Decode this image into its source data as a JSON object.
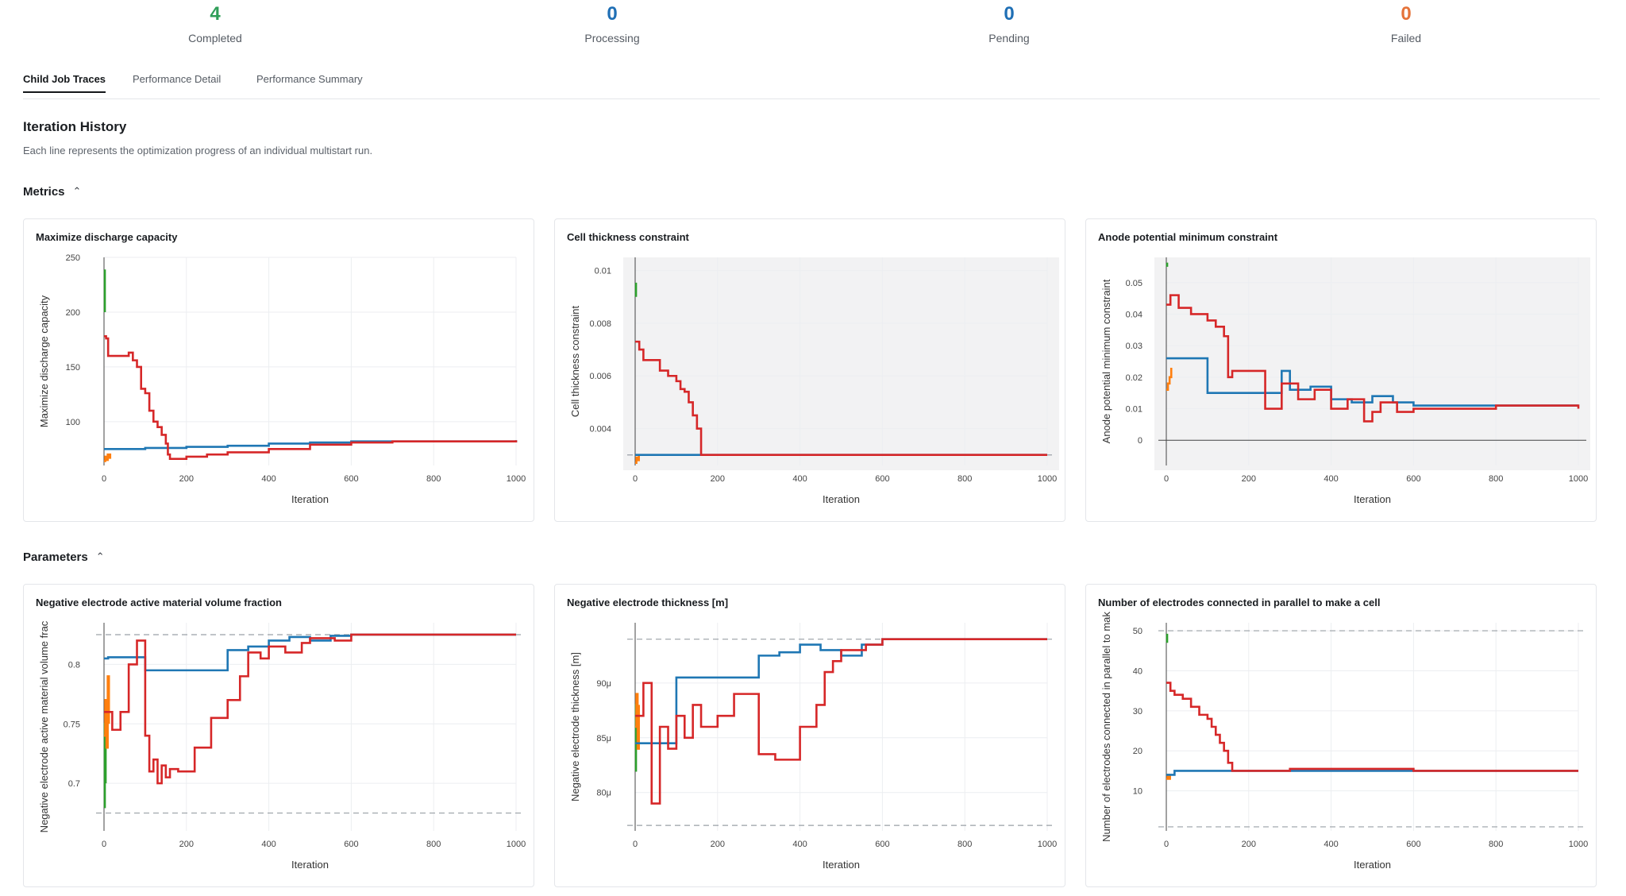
{
  "stats": [
    {
      "value": "4",
      "label": "Completed",
      "color": "#2f9e58"
    },
    {
      "value": "0",
      "label": "Processing",
      "color": "#1f6fb5"
    },
    {
      "value": "0",
      "label": "Pending",
      "color": "#1f6fb5"
    },
    {
      "value": "0",
      "label": "Failed",
      "color": "#e5733a"
    }
  ],
  "tabs": [
    "Child Job Traces",
    "Performance Detail",
    "Performance Summary"
  ],
  "active_tab": "Child Job Traces",
  "page": {
    "title": "Iteration History",
    "subtitle": "Each line represents the optimization progress of an individual multistart run."
  },
  "sections": {
    "metrics": "Metrics",
    "parameters": "Parameters",
    "chevron": "^"
  },
  "series_colors": {
    "red": "#d62728",
    "blue": "#1f77b4",
    "green": "#2ca02c",
    "orange": "#ff7f0e"
  },
  "chart_data": [
    {
      "type": "line",
      "title": "Maximize discharge capacity",
      "xlabel": "Iteration",
      "ylabel": "Maximize discharge capacity",
      "xlim": [
        0,
        1000
      ],
      "ylim": [
        60,
        250
      ],
      "xticks": [
        {
          "v": 0,
          "l": "0"
        },
        {
          "v": 200,
          "l": "200"
        },
        {
          "v": 400,
          "l": "400"
        },
        {
          "v": 600,
          "l": "600"
        },
        {
          "v": 800,
          "l": "800"
        },
        {
          "v": 1000,
          "l": "1000"
        }
      ],
      "yticks": [
        {
          "v": 100,
          "l": "100"
        },
        {
          "v": 150,
          "l": "150"
        },
        {
          "v": 200,
          "l": "200"
        },
        {
          "v": 250,
          "l": "250"
        }
      ],
      "shaded": false,
      "hlines": [],
      "zeroline": null,
      "series": [
        {
          "color": "#2ca02c",
          "x": [
            0,
            2
          ],
          "y": [
            238,
            200
          ]
        },
        {
          "color": "#ff7f0e",
          "x": [
            0,
            3,
            6,
            9,
            12,
            15
          ],
          "y": [
            64,
            68,
            65,
            70,
            67,
            71
          ]
        },
        {
          "color": "#1f77b4",
          "x": [
            0,
            100,
            200,
            300,
            400,
            500,
            600,
            700,
            800,
            1000
          ],
          "y": [
            75,
            76,
            77,
            78,
            80,
            81,
            82,
            82,
            82,
            83
          ]
        },
        {
          "color": "#d62728",
          "x": [
            0,
            5,
            10,
            20,
            40,
            60,
            70,
            80,
            90,
            100,
            110,
            120,
            130,
            140,
            150,
            155,
            160,
            200,
            250,
            300,
            400,
            500,
            600,
            700,
            800,
            1000
          ],
          "y": [
            178,
            176,
            160,
            160,
            160,
            163,
            156,
            150,
            130,
            126,
            110,
            100,
            95,
            88,
            80,
            70,
            66,
            68,
            70,
            72,
            75,
            79,
            81,
            82,
            82,
            83
          ]
        }
      ]
    },
    {
      "type": "line",
      "title": "Cell thickness constraint",
      "xlabel": "Iteration",
      "ylabel": "Cell thickness constraint",
      "xlim": [
        0,
        1000
      ],
      "ylim": [
        0.0026,
        0.0105
      ],
      "xticks": [
        {
          "v": 0,
          "l": "0"
        },
        {
          "v": 200,
          "l": "200"
        },
        {
          "v": 400,
          "l": "400"
        },
        {
          "v": 600,
          "l": "600"
        },
        {
          "v": 800,
          "l": "800"
        },
        {
          "v": 1000,
          "l": "1000"
        }
      ],
      "yticks": [
        {
          "v": 0.004,
          "l": "0.004"
        },
        {
          "v": 0.006,
          "l": "0.006"
        },
        {
          "v": 0.008,
          "l": "0.008"
        },
        {
          "v": 0.01,
          "l": "0.01"
        }
      ],
      "shaded": true,
      "shade_from": 0.003,
      "hlines": [
        0.003
      ],
      "zeroline": null,
      "series": [
        {
          "color": "#2ca02c",
          "x": [
            0,
            2
          ],
          "y": [
            0.0095,
            0.009
          ]
        },
        {
          "color": "#ff7f0e",
          "x": [
            0,
            3,
            6,
            9
          ],
          "y": [
            0.0027,
            0.0029,
            0.0028,
            0.003
          ]
        },
        {
          "color": "#1f77b4",
          "x": [
            0,
            200,
            400,
            600,
            800,
            1000
          ],
          "y": [
            0.003,
            0.003,
            0.003,
            0.003,
            0.003,
            0.003
          ]
        },
        {
          "color": "#d62728",
          "x": [
            0,
            10,
            20,
            40,
            60,
            80,
            100,
            110,
            120,
            130,
            140,
            150,
            160,
            200,
            400,
            600,
            800,
            1000
          ],
          "y": [
            0.0073,
            0.007,
            0.0066,
            0.0066,
            0.0062,
            0.006,
            0.0058,
            0.0055,
            0.0054,
            0.005,
            0.0045,
            0.004,
            0.003,
            0.003,
            0.003,
            0.003,
            0.003,
            0.003
          ]
        }
      ]
    },
    {
      "type": "line",
      "title": "Anode potential minimum constraint",
      "xlabel": "Iteration",
      "ylabel": "Anode potential minimum constraint",
      "xlim": [
        0,
        1000
      ],
      "ylim": [
        -0.008,
        0.058
      ],
      "xticks": [
        {
          "v": 0,
          "l": "0"
        },
        {
          "v": 200,
          "l": "200"
        },
        {
          "v": 400,
          "l": "400"
        },
        {
          "v": 600,
          "l": "600"
        },
        {
          "v": 800,
          "l": "800"
        },
        {
          "v": 1000,
          "l": "1000"
        }
      ],
      "yticks": [
        {
          "v": 0,
          "l": "0"
        },
        {
          "v": 0.01,
          "l": "0.01"
        },
        {
          "v": 0.02,
          "l": "0.02"
        },
        {
          "v": 0.03,
          "l": "0.03"
        },
        {
          "v": 0.04,
          "l": "0.04"
        },
        {
          "v": 0.05,
          "l": "0.05"
        }
      ],
      "shaded": true,
      "shade_from": 0,
      "hlines": [],
      "zeroline": 0,
      "series": [
        {
          "color": "#2ca02c",
          "x": [
            0,
            2
          ],
          "y": [
            0.056,
            0.055
          ]
        },
        {
          "color": "#ff7f0e",
          "x": [
            0,
            4,
            8,
            12
          ],
          "y": [
            0.016,
            0.018,
            0.02,
            0.023
          ]
        },
        {
          "color": "#1f77b4",
          "x": [
            0,
            10,
            100,
            220,
            280,
            300,
            350,
            400,
            450,
            500,
            550,
            600,
            800,
            1000
          ],
          "y": [
            0.026,
            0.026,
            0.015,
            0.015,
            0.022,
            0.016,
            0.017,
            0.013,
            0.012,
            0.014,
            0.012,
            0.011,
            0.011,
            0.011
          ]
        },
        {
          "color": "#d62728",
          "x": [
            0,
            10,
            30,
            60,
            100,
            120,
            140,
            150,
            160,
            200,
            240,
            280,
            320,
            360,
            400,
            440,
            480,
            500,
            520,
            560,
            600,
            800,
            1000
          ],
          "y": [
            0.043,
            0.046,
            0.042,
            0.04,
            0.038,
            0.036,
            0.033,
            0.02,
            0.022,
            0.022,
            0.01,
            0.018,
            0.013,
            0.016,
            0.01,
            0.013,
            0.006,
            0.009,
            0.012,
            0.009,
            0.01,
            0.011,
            0.01
          ]
        }
      ]
    },
    {
      "type": "line",
      "title": "Negative electrode active material volume fraction",
      "xlabel": "Iteration",
      "ylabel": "Negative electrode active material volume frac",
      "xlim": [
        0,
        1000
      ],
      "ylim": [
        0.66,
        0.835
      ],
      "xticks": [
        {
          "v": 0,
          "l": "0"
        },
        {
          "v": 200,
          "l": "200"
        },
        {
          "v": 400,
          "l": "400"
        },
        {
          "v": 600,
          "l": "600"
        },
        {
          "v": 800,
          "l": "800"
        },
        {
          "v": 1000,
          "l": "1000"
        }
      ],
      "yticks": [
        {
          "v": 0.7,
          "l": "0.7"
        },
        {
          "v": 0.75,
          "l": "0.75"
        },
        {
          "v": 0.8,
          "l": "0.8"
        }
      ],
      "shaded": false,
      "hlines": [
        0.675,
        0.825
      ],
      "zeroline": null,
      "series": [
        {
          "color": "#2ca02c",
          "x": [
            0,
            2,
            4
          ],
          "y": [
            0.68,
            0.75,
            0.7
          ]
        },
        {
          "color": "#ff7f0e",
          "x": [
            0,
            3,
            6,
            9,
            12
          ],
          "y": [
            0.74,
            0.77,
            0.73,
            0.79,
            0.75
          ]
        },
        {
          "color": "#1f77b4",
          "x": [
            0,
            10,
            100,
            250,
            300,
            350,
            400,
            450,
            500,
            550,
            600,
            800,
            1000
          ],
          "y": [
            0.805,
            0.806,
            0.795,
            0.795,
            0.812,
            0.815,
            0.82,
            0.823,
            0.82,
            0.824,
            0.825,
            0.825,
            0.825
          ]
        },
        {
          "color": "#d62728",
          "x": [
            0,
            20,
            40,
            60,
            80,
            100,
            110,
            120,
            130,
            140,
            150,
            160,
            180,
            220,
            260,
            300,
            330,
            350,
            380,
            400,
            440,
            480,
            500,
            560,
            600,
            800,
            1000
          ],
          "y": [
            0.76,
            0.745,
            0.76,
            0.8,
            0.82,
            0.74,
            0.71,
            0.72,
            0.7,
            0.715,
            0.705,
            0.712,
            0.71,
            0.73,
            0.755,
            0.77,
            0.79,
            0.81,
            0.805,
            0.815,
            0.81,
            0.818,
            0.822,
            0.82,
            0.825,
            0.825,
            0.825
          ]
        }
      ]
    },
    {
      "type": "line",
      "title": "Negative electrode thickness [m]",
      "xlabel": "Iteration",
      "ylabel": "Negative electrode thickness [m]",
      "xlim": [
        0,
        1000
      ],
      "ylim": [
        7.65e-05,
        9.55e-05
      ],
      "xticks": [
        {
          "v": 0,
          "l": "0"
        },
        {
          "v": 200,
          "l": "200"
        },
        {
          "v": 400,
          "l": "400"
        },
        {
          "v": 600,
          "l": "600"
        },
        {
          "v": 800,
          "l": "800"
        },
        {
          "v": 1000,
          "l": "1000"
        }
      ],
      "yticks": [
        {
          "v": 8e-05,
          "l": "80μ"
        },
        {
          "v": 8.5e-05,
          "l": "85μ"
        },
        {
          "v": 9e-05,
          "l": "90μ"
        }
      ],
      "shaded": false,
      "hlines": [
        7.7e-05,
        9.4e-05
      ],
      "zeroline": null,
      "series": [
        {
          "color": "#2ca02c",
          "x": [
            0,
            2,
            4
          ],
          "y": [
            8.2e-05,
            8.8e-05,
            8.4e-05
          ]
        },
        {
          "color": "#ff7f0e",
          "x": [
            0,
            3,
            6,
            9
          ],
          "y": [
            8.6e-05,
            8.9e-05,
            8.4e-05,
            8.8e-05
          ]
        },
        {
          "color": "#1f77b4",
          "x": [
            0,
            20,
            100,
            250,
            300,
            350,
            400,
            450,
            500,
            550,
            600,
            800,
            1000
          ],
          "y": [
            8.45e-05,
            8.45e-05,
            9.05e-05,
            9.05e-05,
            9.25e-05,
            9.28e-05,
            9.35e-05,
            9.3e-05,
            9.25e-05,
            9.35e-05,
            9.4e-05,
            9.4e-05,
            9.4e-05
          ]
        },
        {
          "color": "#d62728",
          "x": [
            0,
            20,
            40,
            60,
            80,
            100,
            120,
            140,
            160,
            200,
            240,
            300,
            340,
            400,
            440,
            460,
            480,
            500,
            560,
            600,
            800,
            1000
          ],
          "y": [
            8.7e-05,
            9e-05,
            7.9e-05,
            8.6e-05,
            8.4e-05,
            8.7e-05,
            8.5e-05,
            8.8e-05,
            8.6e-05,
            8.7e-05,
            8.9e-05,
            8.35e-05,
            8.3e-05,
            8.6e-05,
            8.8e-05,
            9.1e-05,
            9.2e-05,
            9.3e-05,
            9.35e-05,
            9.4e-05,
            9.4e-05,
            9.4e-05
          ]
        }
      ]
    },
    {
      "type": "line",
      "title": "Number of electrodes connected in parallel to make a cell",
      "xlabel": "Iteration",
      "ylabel": "Number of electrodes connected in parallel to mak",
      "xlim": [
        0,
        1000
      ],
      "ylim": [
        0,
        52
      ],
      "xticks": [
        {
          "v": 0,
          "l": "0"
        },
        {
          "v": 200,
          "l": "200"
        },
        {
          "v": 400,
          "l": "400"
        },
        {
          "v": 600,
          "l": "600"
        },
        {
          "v": 800,
          "l": "800"
        },
        {
          "v": 1000,
          "l": "1000"
        }
      ],
      "yticks": [
        {
          "v": 10,
          "l": "10"
        },
        {
          "v": 20,
          "l": "20"
        },
        {
          "v": 30,
          "l": "30"
        },
        {
          "v": 40,
          "l": "40"
        },
        {
          "v": 50,
          "l": "50"
        }
      ],
      "shaded": false,
      "hlines": [
        1,
        50
      ],
      "zeroline": null,
      "series": [
        {
          "color": "#2ca02c",
          "x": [
            0,
            2
          ],
          "y": [
            49,
            47
          ]
        },
        {
          "color": "#ff7f0e",
          "x": [
            0,
            3,
            6,
            9
          ],
          "y": [
            13,
            14,
            13,
            14
          ]
        },
        {
          "color": "#1f77b4",
          "x": [
            0,
            20,
            100,
            200,
            400,
            600,
            800,
            1000
          ],
          "y": [
            14,
            15,
            15,
            15,
            15,
            15,
            15,
            15
          ]
        },
        {
          "color": "#d62728",
          "x": [
            0,
            10,
            20,
            40,
            60,
            80,
            100,
            110,
            120,
            130,
            140,
            150,
            160,
            200,
            300,
            400,
            600,
            800,
            1000
          ],
          "y": [
            37,
            35,
            34,
            33,
            31,
            29,
            28,
            26,
            24,
            22,
            20,
            17,
            15,
            15,
            15.5,
            15.5,
            15,
            15,
            15
          ]
        }
      ]
    }
  ]
}
